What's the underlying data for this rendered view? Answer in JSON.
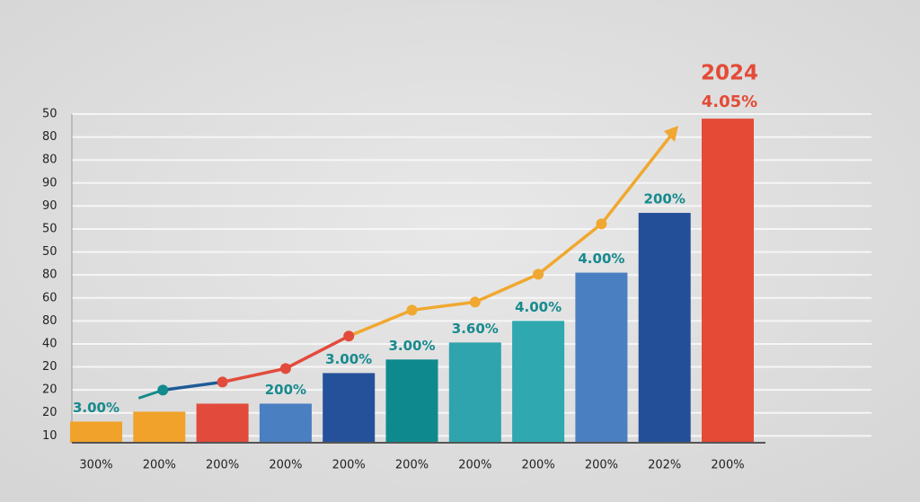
{
  "chart_data": {
    "type": "bar",
    "categories": [
      "300%",
      "200%",
      "200%",
      "200%",
      "200%",
      "200%",
      "200%",
      "200%",
      "200%",
      "202%",
      "200%"
    ],
    "values": [
      1.62,
      2.05,
      2.4,
      2.4,
      3.73,
      4.32,
      5.06,
      6.0,
      8.1,
      10.7,
      14.8
    ],
    "colors": [
      "#f0a22a",
      "#f0a22a",
      "#e24b3b",
      "#4a7fc1",
      "#24519a",
      "#0e8a8f",
      "#2fa3ae",
      "#2fa8b0",
      "#4a7fc1",
      "#234f98",
      "#e44a36"
    ],
    "bar_labels": [
      "3.00%",
      null,
      null,
      "200%",
      "3.00%",
      "3.00%",
      "3.60%",
      "4.00%",
      "4.00%",
      "200%",
      "4.05%"
    ],
    "annotation": "2024",
    "line": {
      "values": [
        null,
        2.99,
        3.34,
        3.93,
        5.34,
        6.47,
        6.82,
        8.03,
        10.22,
        null,
        null
      ],
      "colors": [
        null,
        "#138a8c",
        "#e24b3b",
        "#e24b3b",
        "#e24b3b",
        "#f0a830",
        "#f0a830",
        "#f0a830",
        "#f0a830",
        null,
        null
      ]
    },
    "ylim": [
      0.7,
      15
    ],
    "yticks": [
      {
        "value": 1,
        "label": "10"
      },
      {
        "value": 2,
        "label": "20"
      },
      {
        "value": 3,
        "label": "20"
      },
      {
        "value": 4,
        "label": "20"
      },
      {
        "value": 5,
        "label": "40"
      },
      {
        "value": 6,
        "label": "80"
      },
      {
        "value": 7,
        "label": "60"
      },
      {
        "value": 8,
        "label": "80"
      },
      {
        "value": 9,
        "label": "50"
      },
      {
        "value": 10,
        "label": "50"
      },
      {
        "value": 11,
        "label": "90"
      },
      {
        "value": 12,
        "label": "90"
      },
      {
        "value": 13,
        "label": "80"
      },
      {
        "value": 14,
        "label": "80"
      },
      {
        "value": 15,
        "label": "50"
      }
    ],
    "grid": true
  }
}
